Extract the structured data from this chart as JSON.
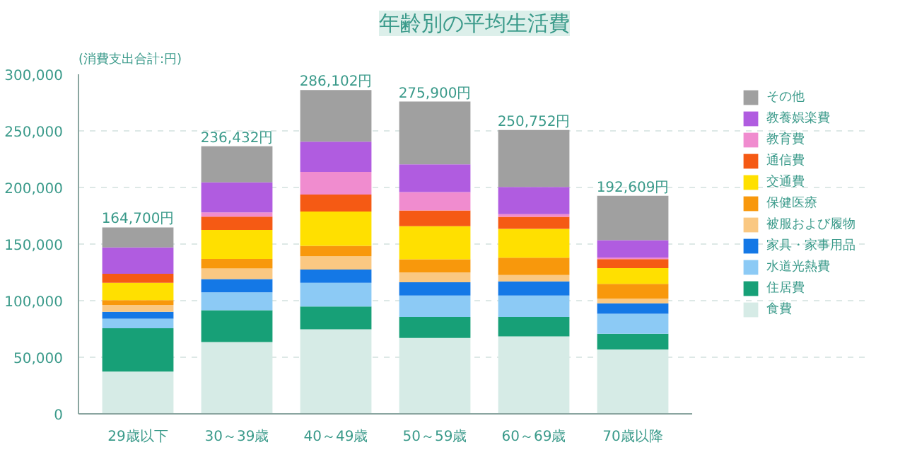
{
  "chart_data": {
    "type": "bar",
    "stacked": true,
    "title": "年齢別の平均生活費",
    "ylabel": "(消費支出合計:円)",
    "categories": [
      "29歳以下",
      "30～39歳",
      "40～49歳",
      "50～59歳",
      "60～69歳",
      "70歳以降"
    ],
    "series": [
      {
        "name": "食費",
        "color": "#d6ebe6",
        "values": [
          37300,
          63500,
          74700,
          67100,
          68500,
          56900
        ]
      },
      {
        "name": "住居費",
        "color": "#17a077",
        "values": [
          38300,
          28000,
          20100,
          18500,
          17100,
          13900
        ]
      },
      {
        "name": "水道光熱費",
        "color": "#8ccaf5",
        "values": [
          8400,
          15900,
          21000,
          19000,
          19000,
          17600
        ]
      },
      {
        "name": "家具・家事用品",
        "color": "#1478e6",
        "values": [
          6100,
          11700,
          11700,
          11600,
          12500,
          9300
        ]
      },
      {
        "name": "被服および履物",
        "color": "#fac882",
        "values": [
          6100,
          9300,
          11700,
          8800,
          5600,
          4200
        ]
      },
      {
        "name": "保健医療",
        "color": "#f8980c",
        "values": [
          4200,
          8400,
          9300,
          11600,
          15300,
          13000
        ]
      },
      {
        "name": "交通費",
        "color": "#ffe000",
        "values": [
          15400,
          25700,
          30300,
          29200,
          25500,
          13900
        ]
      },
      {
        "name": "通信費",
        "color": "#f55a14",
        "values": [
          7900,
          11700,
          14900,
          13900,
          10600,
          7900
        ]
      },
      {
        "name": "教育費",
        "color": "#f08ccf",
        "values": [
          0,
          3700,
          20100,
          16200,
          2300,
          1400
        ]
      },
      {
        "name": "教養娯楽費",
        "color": "#b05ce0",
        "values": [
          23300,
          26600,
          26600,
          24500,
          24100,
          15300
        ]
      },
      {
        "name": "その他",
        "color": "#a0a0a0",
        "values": [
          17700,
          31932,
          45700,
          55500,
          50252,
          39209
        ]
      }
    ],
    "totals": [
      "164,700円",
      "236,432円",
      "286,102円",
      "275,900円",
      "250,752円",
      "192,609円"
    ],
    "ylim": [
      0,
      300000
    ],
    "yticks": [
      {
        "value": 0,
        "label": "0"
      },
      {
        "value": 50000,
        "label": "50,000"
      },
      {
        "value": 100000,
        "label": "100,000"
      },
      {
        "value": 150000,
        "label": "150,000"
      },
      {
        "value": 200000,
        "label": "200,000"
      },
      {
        "value": 250000,
        "label": "250,000"
      },
      {
        "value": 300000,
        "label": "300,000"
      }
    ],
    "grid": "y",
    "legend": "right"
  }
}
